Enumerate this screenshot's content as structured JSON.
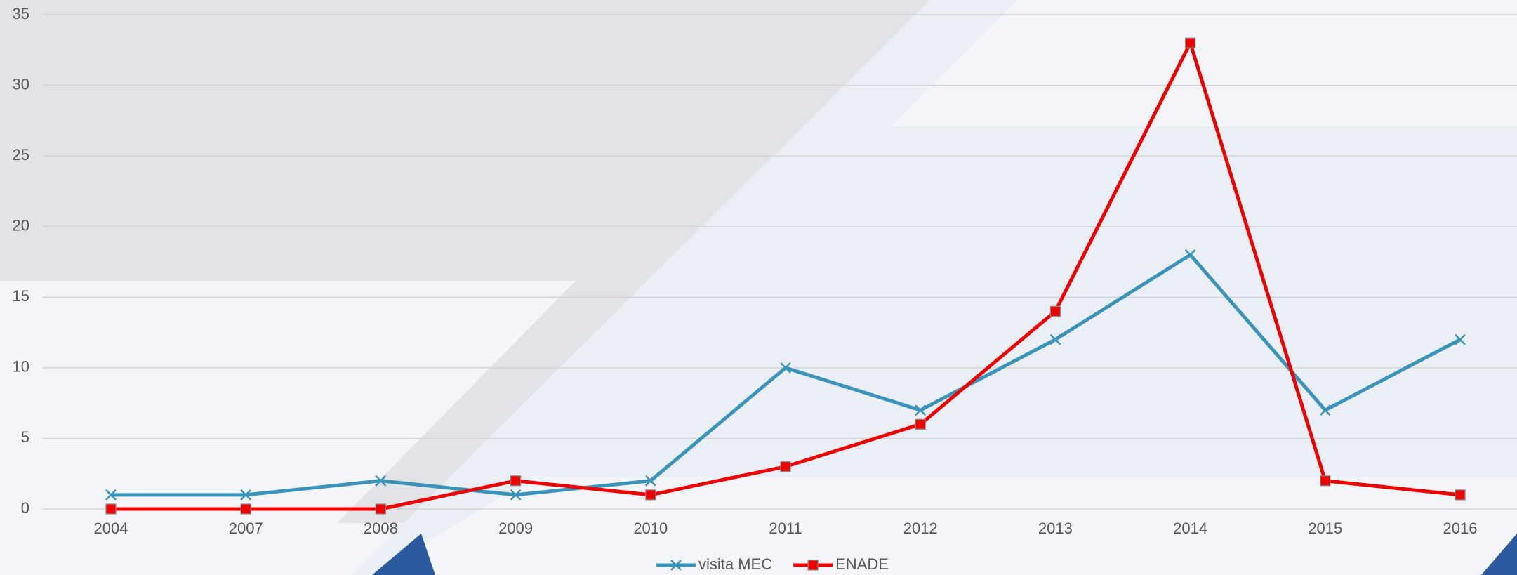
{
  "chart_data": {
    "type": "line",
    "categories": [
      "2004",
      "2007",
      "2008",
      "2009",
      "2010",
      "2011",
      "2012",
      "2013",
      "2014",
      "2015",
      "2016"
    ],
    "series": [
      {
        "name": "visita MEC",
        "color": "#3a93b8",
        "marker": "x",
        "values": [
          1,
          1,
          2,
          1,
          2,
          10,
          7,
          12,
          18,
          7,
          12
        ]
      },
      {
        "name": "ENADE",
        "color": "#ee0000",
        "marker": "square",
        "values": [
          0,
          0,
          0,
          2,
          1,
          3,
          6,
          14,
          33,
          2,
          1
        ]
      }
    ],
    "ylim": [
      0,
      35
    ],
    "yticks": [
      0,
      5,
      10,
      15,
      20,
      25,
      30,
      35
    ],
    "grid": true,
    "legend": "bottom"
  }
}
